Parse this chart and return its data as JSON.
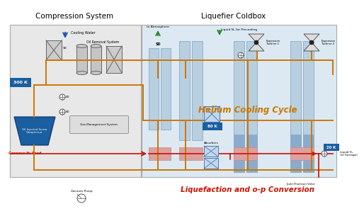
{
  "title_left": "Compression System",
  "title_right": "Liquefier Coldbox",
  "subtitle_helium": "Helium Cooling Cycle",
  "subtitle_liq": "Liquefaction and o-p Conversion",
  "bg_outer": "#f5f5f5",
  "left_box_color": "#e6e6e6",
  "right_box_color": "#dce8f0",
  "he_color": "#b8cfe0",
  "he_edge": "#8aabcc",
  "he_dark_color": "#8aabcc",
  "orange": "#cc7700",
  "red": "#cc1100",
  "blue_bg": "#1a5fa0",
  "green": "#228822",
  "blue_arrow": "#2255aa",
  "label_300K": "300 K",
  "label_80K": "80 K",
  "label_20K": "20 K",
  "text_cooling_water": "Cooling Water",
  "text_oil_removal": "Oil Removal System",
  "text_compressor": "Oil Injected Screw\nCompressor",
  "text_gas_mgmt": "Gas Management System",
  "text_to_atm": "to Atmosphere",
  "text_liquid_n2": "Liquid N₂ for Precooling",
  "text_exp_t1": "Expansion\nTurbine 1",
  "text_exp_t2": "Expansion\nTurbine 2",
  "text_gaseous_h2": "Gaseous H₂ Feed",
  "text_liquid_h2": "Liquid H₂\n(to Storage)",
  "text_vacuum": "Vacuum Pump",
  "text_jt_valve": "Joule-Thomson Valve",
  "text_adsorbers": "Adsorbers"
}
